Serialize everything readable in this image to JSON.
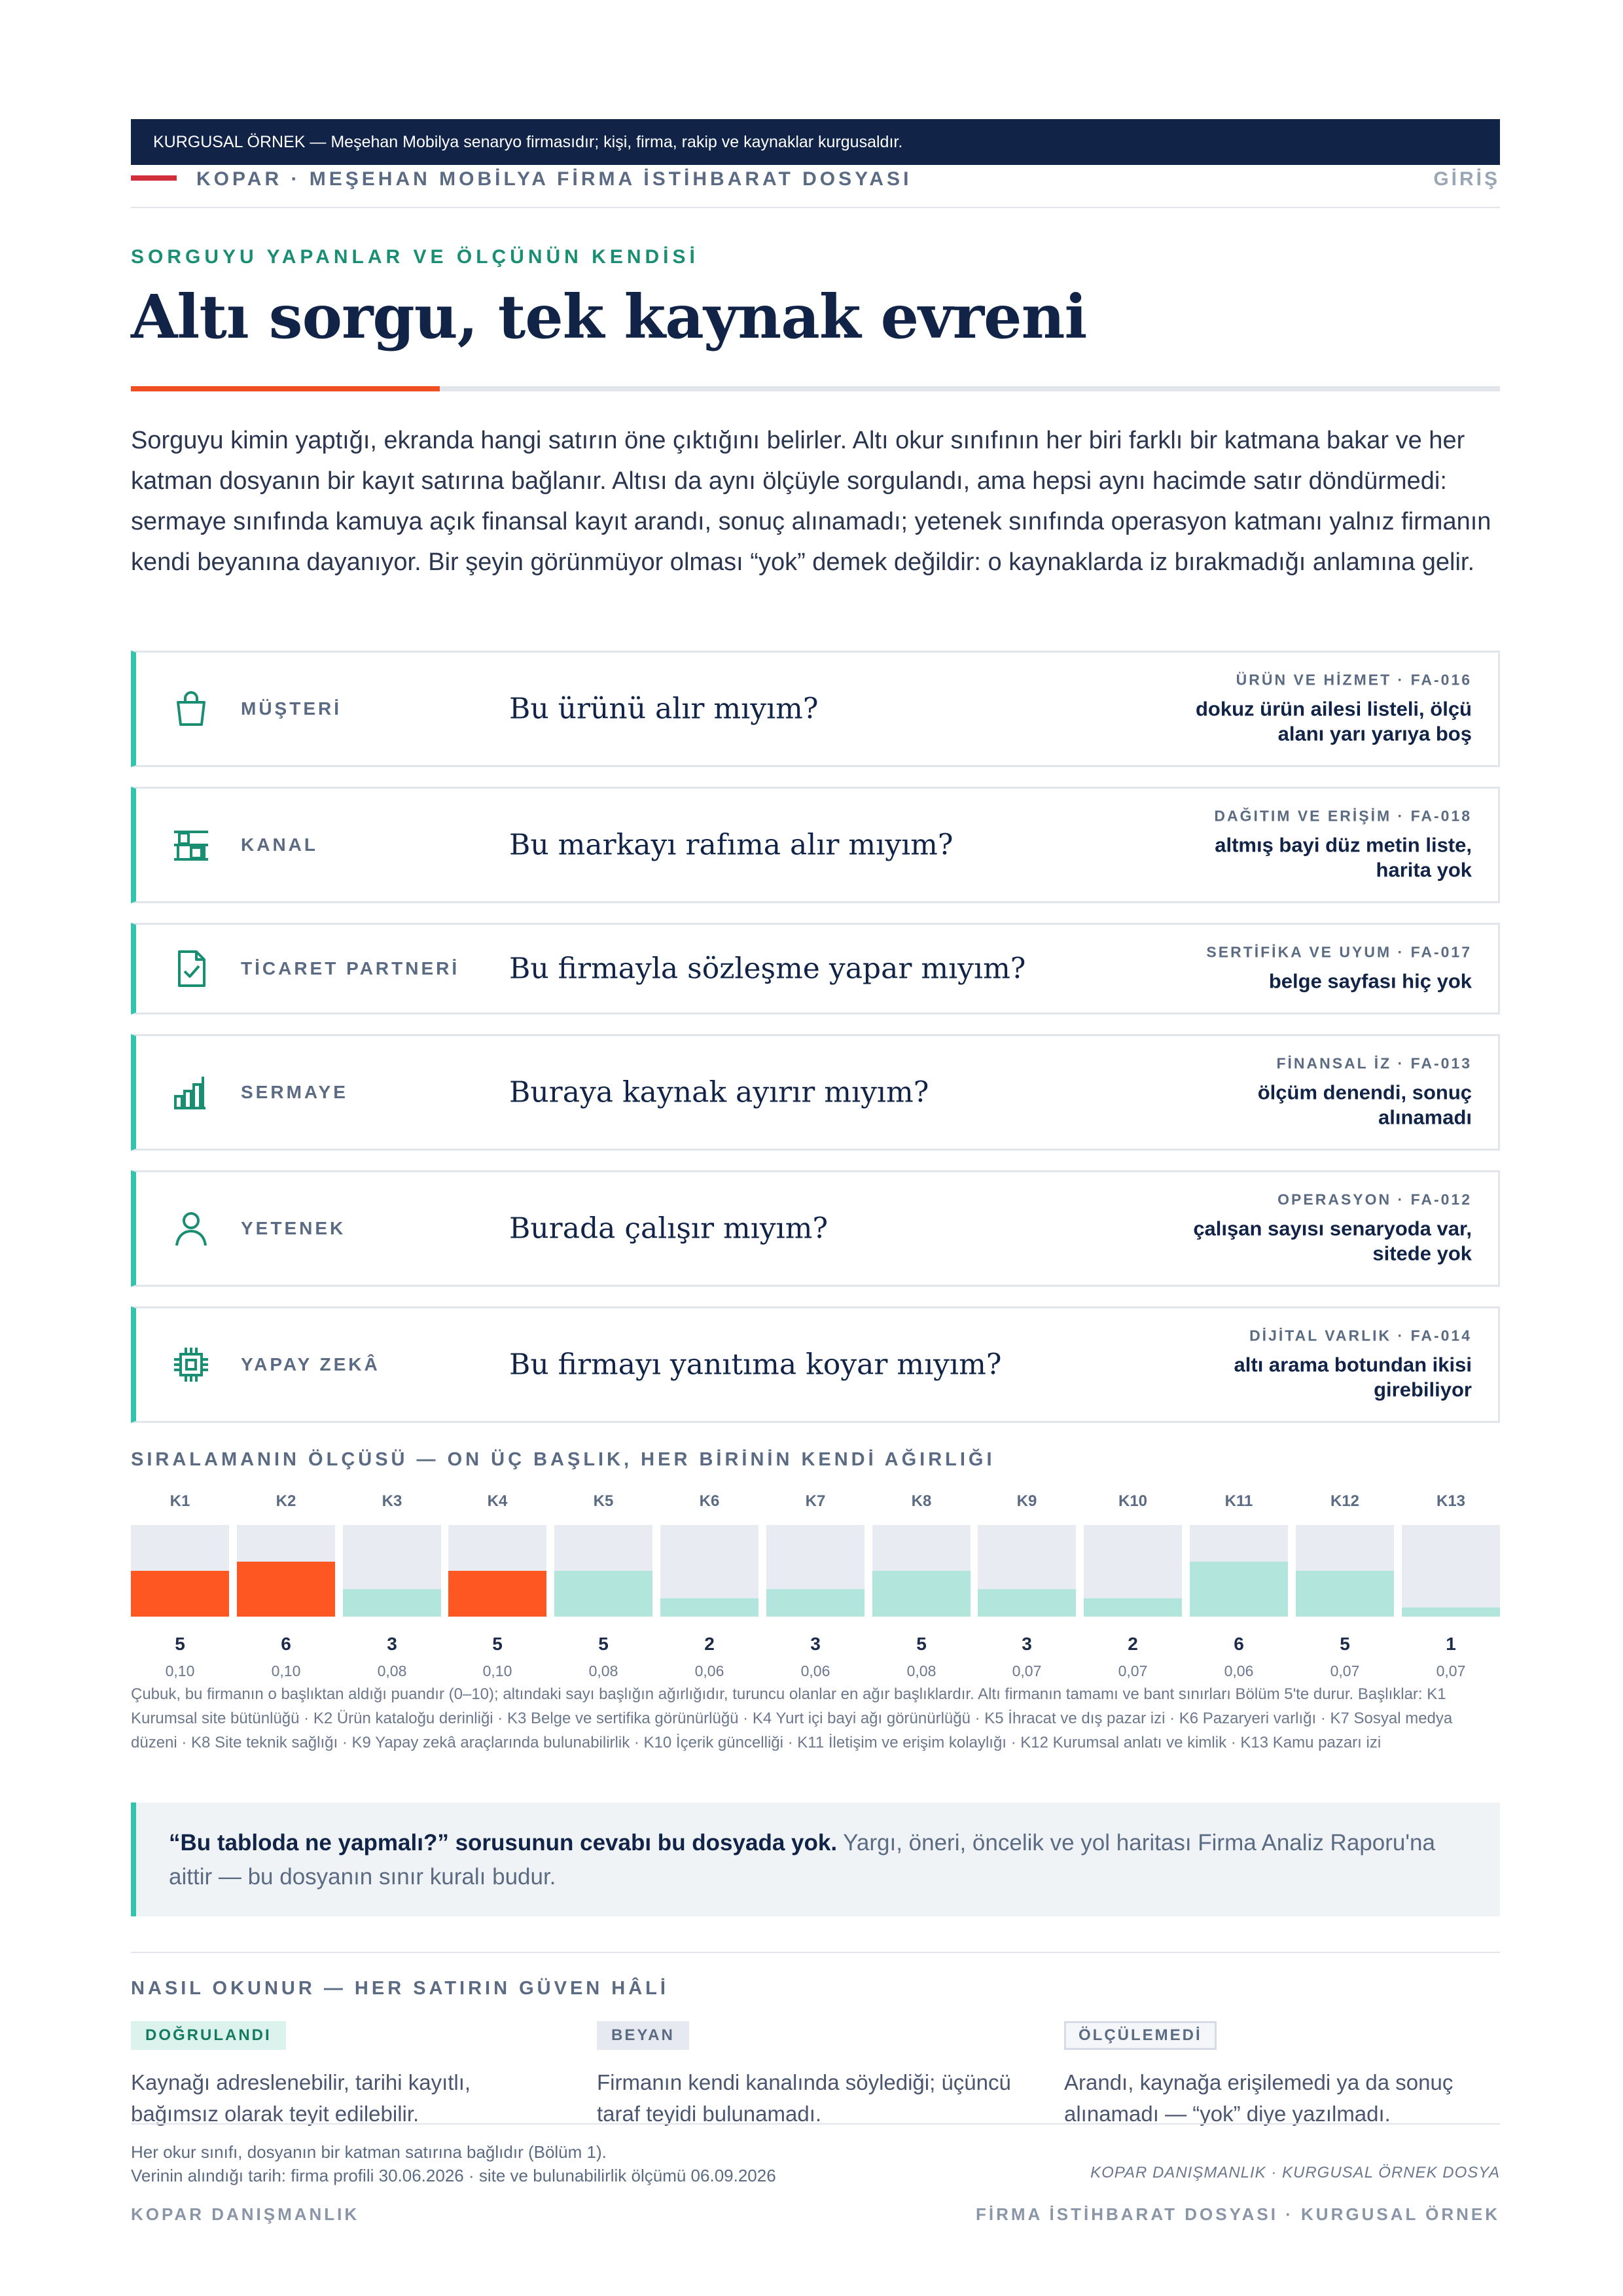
{
  "banner": "KURGUSAL ÖRNEK — Meşehan Mobilya senaryo firmasıdır; kişi, firma, rakip ve kaynaklar kurgusaldır.",
  "running_head": {
    "title": "KOPAR · MEŞEHAN MOBİLYA FİRMA İSTİHBARAT DOSYASI",
    "section": "GİRİŞ"
  },
  "kicker": "SORGUYU YAPANLAR VE ÖLÇÜNÜN KENDİSİ",
  "headline": "Altı sorgu, tek kaynak evreni",
  "lede": "Sorguyu kimin yaptığı, ekranda hangi satırın öne çıktığını belirler. Altı okur sınıfının her biri farklı bir katmana bakar ve her katman dosyanın bir kayıt satırına bağlanır. Altısı da aynı ölçüyle sorgulandı, ama hepsi aynı hacimde satır döndürmedi: sermaye sınıfında kamuya açık finansal kayıt arandı, sonuç alınamadı; yetenek sınıfında operasyon katmanı yalnız firmanın kendi beyanına dayanıyor. Bir şeyin görünmüyor olması “yok” demek değildir: o kaynaklarda iz bırakmadığı anlamına gelir.",
  "queries": [
    {
      "icon": "shopping-bag-icon",
      "cls": "MÜŞTERİ",
      "question": "Bu ürünü alır mıyım?",
      "tag": "ÜRÜN VE HİZMET · FA-016",
      "status_1": "dokuz ürün ailesi listeli, ölçü",
      "status_2": "alanı yarı yarıya boş"
    },
    {
      "icon": "shelf-icon",
      "cls": "KANAL",
      "question": "Bu markayı rafıma alır mıyım?",
      "tag": "DAĞITIM VE ERİŞİM · FA-018",
      "status_1": "altmış bayi düz metin liste,",
      "status_2": "harita yok"
    },
    {
      "icon": "document-check-icon",
      "cls": "TİCARET PARTNERİ",
      "question": "Bu firmayla sözleşme yapar mıyım?",
      "tag": "SERTİFİKA VE UYUM · FA-017",
      "status_1": "belge sayfası hiç yok",
      "status_2": ""
    },
    {
      "icon": "bar-chart-icon",
      "cls": "SERMAYE",
      "question": "Buraya kaynak ayırır mıyım?",
      "tag": "FİNANSAL İZ · FA-013",
      "status_1": "ölçüm denendi, sonuç",
      "status_2": "alınamadı"
    },
    {
      "icon": "person-icon",
      "cls": "YETENEK",
      "question": "Burada çalışır mıyım?",
      "tag": "OPERASYON · FA-012",
      "status_1": "çalışan sayısı senaryoda var,",
      "status_2": "sitede yok"
    },
    {
      "icon": "chip-icon",
      "cls": "YAPAY ZEKÂ",
      "question": "Bu firmayı yanıtıma koyar mıyım?",
      "tag": "DİJİTAL VARLIK · FA-014",
      "status_1": "altı arama botundan ikisi",
      "status_2": "girebiliyor"
    }
  ],
  "chart_section_label": "SIRALAMANIN ÖLÇÜSÜ — ON ÜÇ BAŞLIK, HER BİRİNİN KENDİ AĞIRLIĞI",
  "chart_data": {
    "type": "bar",
    "categories": [
      "K1",
      "K2",
      "K3",
      "K4",
      "K5",
      "K6",
      "K7",
      "K8",
      "K9",
      "K10",
      "K11",
      "K12",
      "K13"
    ],
    "values": [
      5,
      6,
      3,
      5,
      5,
      2,
      3,
      5,
      3,
      2,
      6,
      5,
      1
    ],
    "weights": [
      "0,10",
      "0,10",
      "0,08",
      "0,10",
      "0,08",
      "0,06",
      "0,06",
      "0,08",
      "0,07",
      "0,07",
      "0,06",
      "0,07",
      "0,07"
    ],
    "highlighted": [
      true,
      true,
      false,
      true,
      false,
      false,
      false,
      false,
      false,
      false,
      false,
      false,
      false
    ],
    "ylim": [
      0,
      10
    ],
    "colors": {
      "highlight": "#ff5722",
      "normal": "#b2e6dc",
      "track": "#e8ecf2"
    }
  },
  "chart_note": "Çubuk, bu firmanın o başlıktan aldığı puandır (0–10); altındaki sayı başlığın ağırlığıdır, turuncu olanlar en ağır başlıklardır. Altı firmanın tamamı ve bant sınırları Bölüm 5'te durur. Başlıklar: K1 Kurumsal site bütünlüğü · K2 Ürün kataloğu derinliği · K3 Belge ve sertifika görünürlüğü · K4 Yurt içi bayi ağı görünürlüğü · K5 İhracat ve dış pazar izi · K6 Pazaryeri varlığı · K7 Sosyal medya düzeni · K8 Site teknik sağlığı · K9 Yapay zekâ araçlarında bulunabilirlik · K10 İçerik güncelliği · K11 İletişim ve erişim kolaylığı · K12 Kurumsal anlatı ve kimlik · K13 Kamu pazarı izi",
  "callout": {
    "strong": "“Bu tabloda ne yapmalı?” sorusunun cevabı bu dosyada yok.",
    "rest": " Yargı, öneri, öncelik ve yol haritası Firma Analiz Raporu'na aittir — bu dosyanın sınır kuralı budur."
  },
  "legend_label": "NASIL OKUNUR — HER SATIRIN GÜVEN HÂLİ",
  "legend": [
    {
      "badge": "DOĞRULANDI",
      "text": "Kaynağı adreslenebilir, tarihi kayıtlı, bağımsız olarak teyit edilebilir."
    },
    {
      "badge": "BEYAN",
      "text": "Firmanın kendi kanalında söylediği; üçüncü taraf teyidi bulunamadı."
    },
    {
      "badge": "ÖLÇÜLEMEDİ",
      "text": "Arandı, kaynağa erişilemedi ya da sonuç alınamadı — “yok” diye yazılmadı."
    }
  ],
  "footer": {
    "note_1": "Her okur sınıfı, dosyanın bir katman satırına bağlıdır (Bölüm 1).",
    "note_2": "Verinin alındığı tarih: firma profili 30.06.2026 · site ve bulunabilirlik ölçümü 06.09.2026",
    "italic": "KOPAR DANIŞMANLIK · KURGUSAL ÖRNEK DOSYA",
    "left": "KOPAR DANIŞMANLIK",
    "right": "FİRMA İSTİHBARAT DOSYASI · KURGUSAL ÖRNEK"
  }
}
